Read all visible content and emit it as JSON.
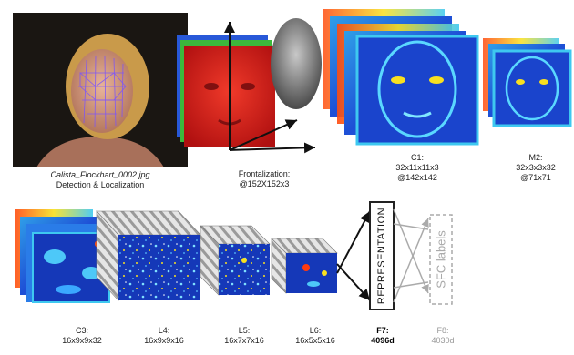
{
  "stages": {
    "detection": {
      "filename": "Calista_Flockhart_0002.jpg",
      "caption": "Detection & Localization"
    },
    "frontalization": {
      "line1": "Frontalization:",
      "line2": "@152X152x3"
    },
    "c1": {
      "line1": "C1:",
      "line2": "32x11x11x3",
      "line3": "@142x142"
    },
    "m2": {
      "line1": "M2:",
      "line2": "32x3x3x32",
      "line3": "@71x71"
    },
    "c3": {
      "line1": "C3:",
      "line2": "16x9x9x32"
    },
    "l4": {
      "line1": "L4:",
      "line2": "16x9x9x16"
    },
    "l5": {
      "line1": "L5:",
      "line2": "16x7x7x16"
    },
    "l6": {
      "line1": "L6:",
      "line2": "16x5x5x16"
    },
    "f7": {
      "line1": "F7:",
      "line2": "4096d"
    },
    "f8": {
      "line1": "F8:",
      "line2": "4030d"
    }
  },
  "boxes": {
    "representation": "REPRESENTATION",
    "sfc_labels": "SFC labels"
  },
  "colors": {
    "frontal_red": "#d81c18",
    "feature_blue": "#1e4fd6",
    "feature_cyan": "#3ec8f0",
    "feature_hot": "#ff3a10",
    "stripe_gray": "#b5b5b5"
  }
}
